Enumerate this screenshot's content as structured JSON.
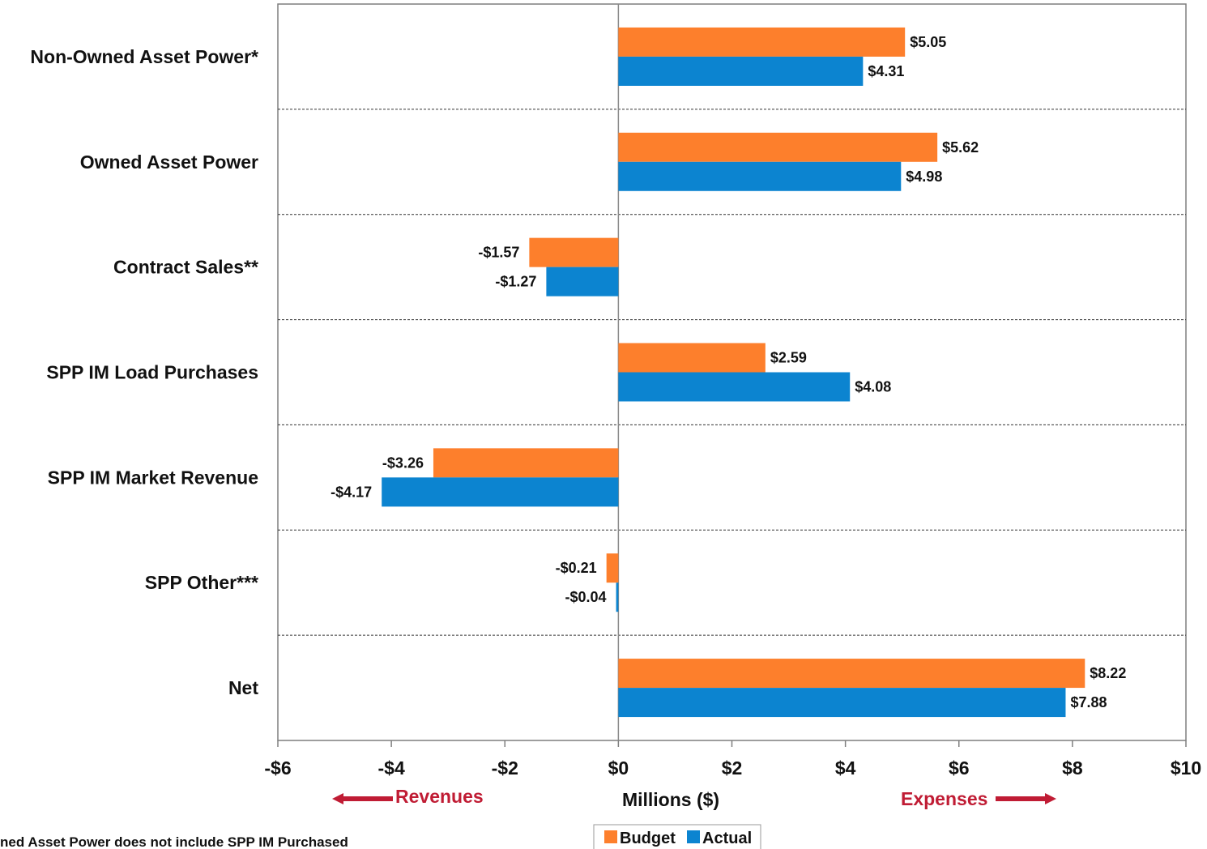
{
  "chart_data": {
    "type": "bar",
    "orientation": "horizontal",
    "categories": [
      "Non-Owned Asset Power*",
      "Owned Asset Power",
      "Contract Sales**",
      "SPP IM Load Purchases",
      "SPP IM Market Revenue",
      "SPP Other***",
      "Net"
    ],
    "series": [
      {
        "name": "Budget",
        "color": "#fd7f2c",
        "values": [
          5.05,
          5.62,
          -1.57,
          2.59,
          -3.26,
          -0.21,
          8.22
        ],
        "labels": [
          "$5.05",
          "$5.62",
          "-$1.57",
          "$2.59",
          "-$3.26",
          "-$0.21",
          "$8.22"
        ]
      },
      {
        "name": "Actual",
        "color": "#0c84d0",
        "values": [
          4.31,
          4.98,
          -1.27,
          4.08,
          -4.17,
          -0.04,
          7.88
        ],
        "labels": [
          "$4.31",
          "$4.98",
          "-$1.27",
          "$4.08",
          "-$4.17",
          "-$0.04",
          "$7.88"
        ]
      }
    ],
    "xlim": [
      -6,
      10
    ],
    "xticks": [
      -6,
      -4,
      -2,
      0,
      2,
      4,
      6,
      8,
      10
    ],
    "xtick_labels": [
      "-$6",
      "-$4",
      "-$2",
      "$0",
      "$2",
      "$4",
      "$6",
      "$8",
      "$10"
    ],
    "xlabel": "Millions ($)",
    "grid": "dashed horizontal separators between categories",
    "legend": "bottom-center",
    "direction_labels": {
      "left": "Revenues",
      "right": "Expenses",
      "color": "#c01c34"
    },
    "footnote": "ned Asset Power does not include  SPP IM Purchased"
  }
}
